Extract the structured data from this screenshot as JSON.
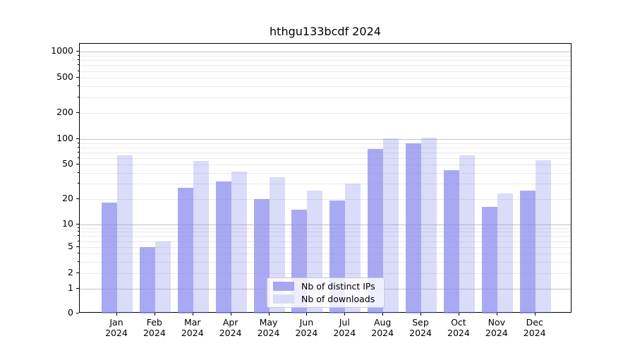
{
  "figure": {
    "title": "hthgu133bcdf 2024"
  },
  "legend": {
    "items": [
      {
        "label": "Nb of distinct IPs",
        "key": "distinct_ips"
      },
      {
        "label": "Nb of downloads",
        "key": "downloads"
      }
    ]
  },
  "colors": {
    "bar_dark": "rgba(136,136,238,0.72)",
    "bar_light": "rgba(136,136,238,0.30)",
    "swatch_dark": "#a6a6f1",
    "swatch_light": "#dbdbf9",
    "grid_major": "#c3c3c3",
    "grid_minor": "#e9e9e9",
    "axis": "#000000"
  },
  "y_axis": {
    "tick_values": [
      0,
      1,
      2,
      5,
      10,
      20,
      50,
      100,
      200,
      500,
      1000
    ],
    "tick_labels": [
      "0",
      "1",
      "2",
      "5",
      "10",
      "20",
      "50",
      "100",
      "200",
      "500",
      "1000"
    ]
  },
  "x_axis": {
    "months": [
      "Jan",
      "Feb",
      "Mar",
      "Apr",
      "May",
      "Jun",
      "Jul",
      "Aug",
      "Sep",
      "Oct",
      "Nov",
      "Dec"
    ],
    "year": "2024"
  },
  "chart_data": {
    "type": "bar",
    "title": "hthgu133bcdf 2024",
    "categories": [
      "Jan 2024",
      "Feb 2024",
      "Mar 2024",
      "Apr 2024",
      "May 2024",
      "Jun 2024",
      "Jul 2024",
      "Aug 2024",
      "Sep 2024",
      "Oct 2024",
      "Nov 2024",
      "Dec 2024"
    ],
    "series": [
      {
        "name": "Nb of distinct IPs",
        "values": [
          18,
          5,
          27,
          32,
          20,
          15,
          19,
          76,
          90,
          43,
          16,
          25
        ]
      },
      {
        "name": "Nb of downloads",
        "values": [
          65,
          6,
          55,
          42,
          36,
          25,
          30,
          102,
          103,
          65,
          23,
          56
        ]
      }
    ],
    "xlabel": "",
    "ylabel": "",
    "yscale": "log (with 0 baseline segment)",
    "y_ticks": [
      0,
      1,
      2,
      5,
      10,
      20,
      50,
      100,
      200,
      500,
      1000
    ],
    "ylim": [
      0,
      1250
    ],
    "grid": "horizontal, major and minor",
    "legend_position": "lower center"
  }
}
